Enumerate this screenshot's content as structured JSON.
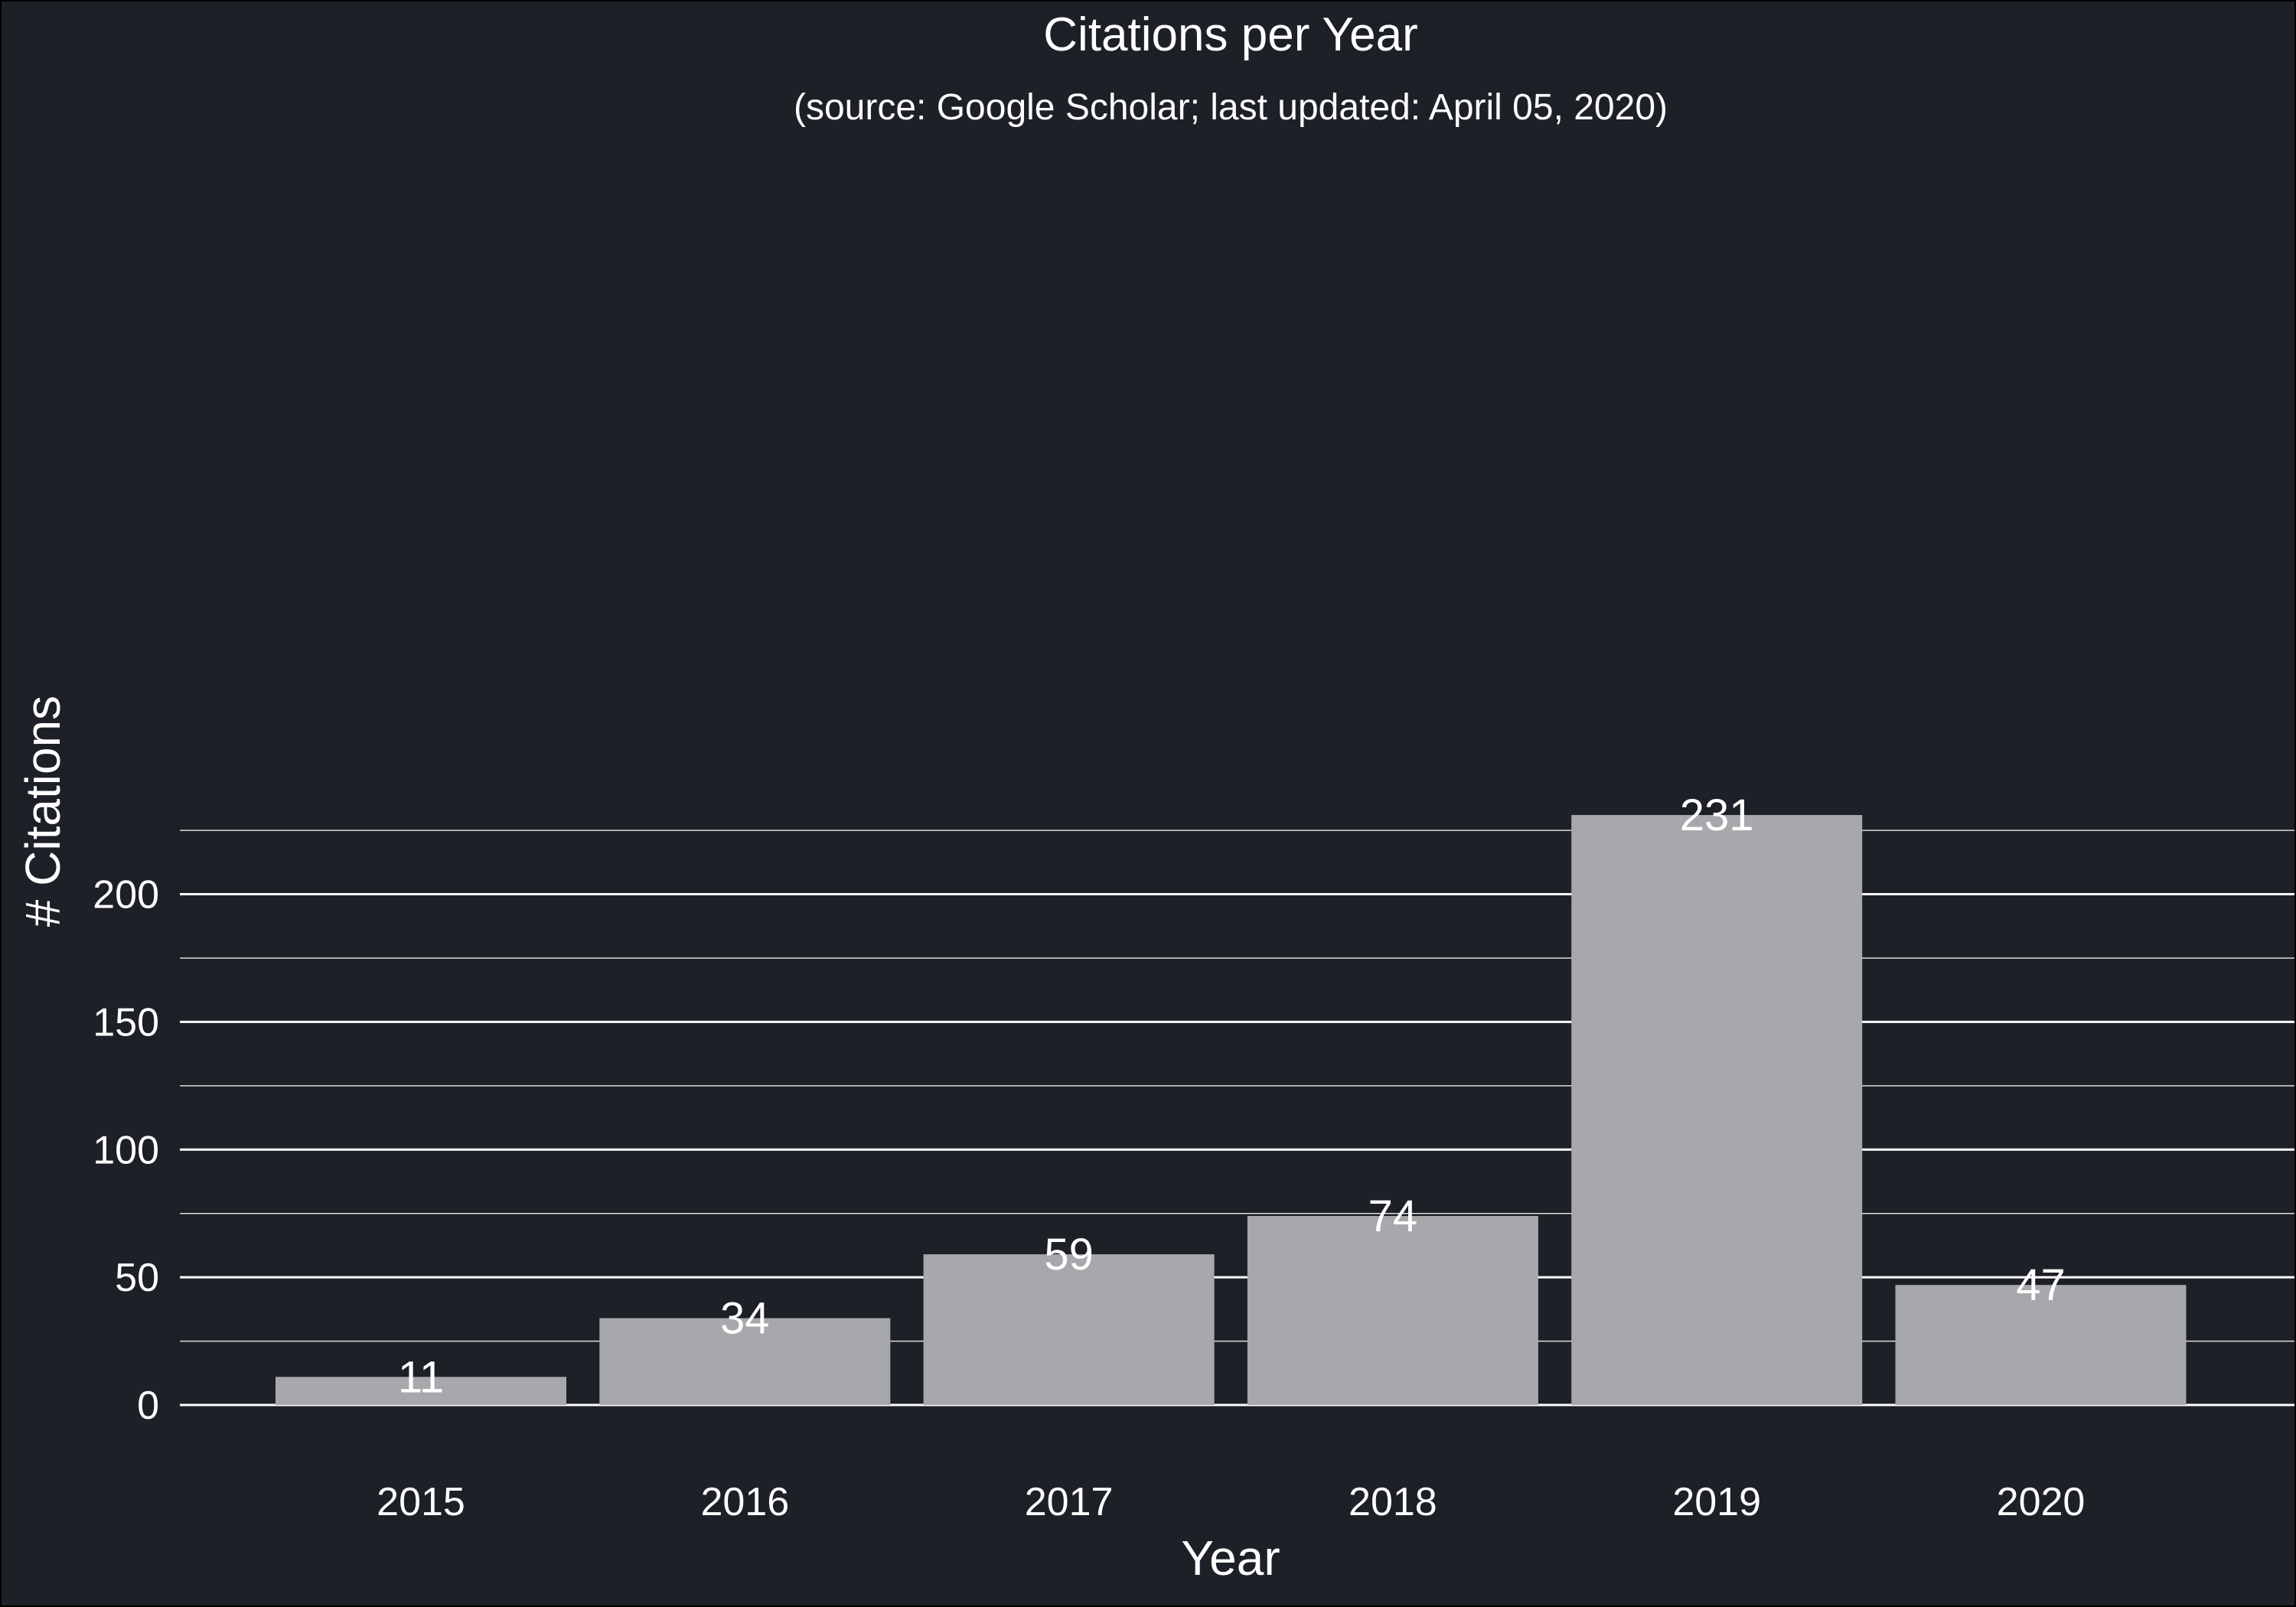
{
  "chart_data": {
    "type": "bar",
    "title": "Citations per Year",
    "subtitle": "(source: Google Scholar; last updated: April 05, 2020)",
    "xlabel": "Year",
    "ylabel": "# Citations",
    "categories": [
      "2015",
      "2016",
      "2017",
      "2018",
      "2019",
      "2020"
    ],
    "values": [
      11,
      34,
      59,
      74,
      231,
      47
    ],
    "data_labels": [
      "11",
      "34",
      "59",
      "74",
      "231",
      "47"
    ],
    "ylim": [
      0,
      240
    ],
    "yticks": [
      0,
      50,
      100,
      150,
      200
    ],
    "ytick_labels": [
      "0",
      "50",
      "100",
      "150",
      "200"
    ],
    "minor_gridlines": [
      25,
      75,
      125,
      175,
      225
    ],
    "grid": "horizontal",
    "legend": "none",
    "colors": {
      "background": "#1d2027",
      "bar": "#a7a8ab",
      "grid": "#ffffff",
      "text": "#ffffff"
    }
  }
}
